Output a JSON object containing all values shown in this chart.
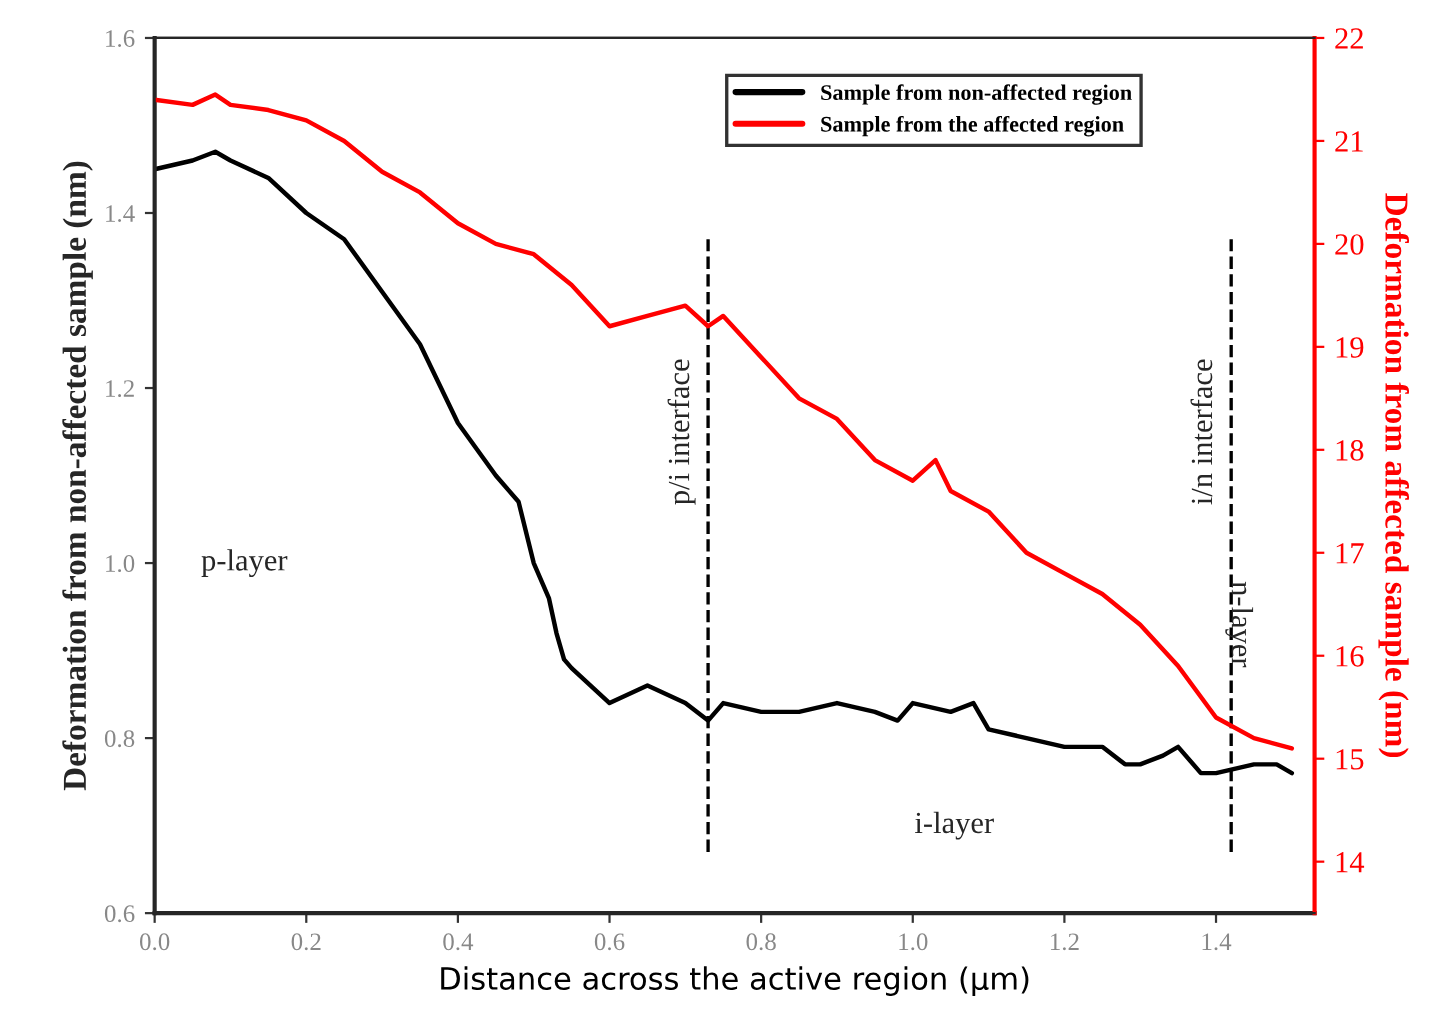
{
  "chart_data": {
    "type": "line",
    "xlabel": "Distance across the active region (μm)",
    "ylabel": "Deformation from non-affected sample (nm)",
    "y2label": "Deformation from affected sample (nm)",
    "xlim": [
      0,
      1.53
    ],
    "xticks": [
      {
        "value": 0,
        "label": "0.0"
      },
      0.2,
      0.4,
      0.6,
      0.8,
      {
        "value": 1,
        "label": "1.0"
      },
      1.2,
      1.4
    ],
    "ylim": [
      0.6,
      1.6
    ],
    "yticks": [
      0.6,
      0.8,
      {
        "value": 1,
        "label": "1.0"
      },
      1.2,
      1.4,
      1.6
    ],
    "y2lim": [
      13.5,
      22
    ],
    "y2ticks": [
      14,
      15,
      16,
      17,
      18,
      19,
      20,
      21,
      22
    ],
    "legend": "top right",
    "grid": false,
    "marker": "none",
    "line_style": "solid",
    "series": [
      {
        "name": "Sample from non-affected region",
        "color": "#000000",
        "x": [
          0,
          0.05,
          0.08,
          0.1,
          0.15,
          0.2,
          0.25,
          0.3,
          0.35,
          0.4,
          0.45,
          0.48,
          0.5,
          0.52,
          0.53,
          0.54,
          0.55,
          0.6,
          0.65,
          0.7,
          0.73,
          0.75,
          0.8,
          0.85,
          0.9,
          0.95,
          0.98,
          1.0,
          1.05,
          1.08,
          1.1,
          1.15,
          1.2,
          1.25,
          1.28,
          1.3,
          1.33,
          1.35,
          1.38,
          1.4,
          1.45,
          1.48,
          1.5
        ],
        "values": [
          1.45,
          1.46,
          1.47,
          1.46,
          1.44,
          1.4,
          1.37,
          1.31,
          1.25,
          1.16,
          1.1,
          1.07,
          1.0,
          0.96,
          0.92,
          0.89,
          0.88,
          0.84,
          0.86,
          0.84,
          0.82,
          0.84,
          0.83,
          0.83,
          0.84,
          0.83,
          0.82,
          0.84,
          0.83,
          0.84,
          0.81,
          0.8,
          0.79,
          0.79,
          0.77,
          0.77,
          0.78,
          0.79,
          0.76,
          0.76,
          0.77,
          0.77,
          0.76
        ]
      },
      {
        "name": "Sample from the affected region",
        "color": "#ff0000",
        "axis": "y2",
        "x": [
          0,
          0.05,
          0.08,
          0.1,
          0.15,
          0.2,
          0.25,
          0.3,
          0.35,
          0.4,
          0.45,
          0.5,
          0.55,
          0.6,
          0.65,
          0.7,
          0.73,
          0.75,
          0.8,
          0.85,
          0.9,
          0.95,
          1.0,
          1.03,
          1.05,
          1.1,
          1.15,
          1.2,
          1.25,
          1.3,
          1.35,
          1.4,
          1.45,
          1.5
        ],
        "values": [
          21.4,
          21.35,
          21.45,
          21.35,
          21.3,
          21.2,
          21.0,
          20.7,
          20.5,
          20.2,
          20.0,
          19.9,
          19.6,
          19.2,
          19.3,
          19.4,
          19.2,
          19.3,
          18.9,
          18.5,
          18.3,
          17.9,
          17.7,
          17.9,
          17.6,
          17.4,
          17.0,
          16.8,
          16.6,
          16.3,
          15.9,
          15.4,
          15.2,
          15.1
        ]
      }
    ],
    "ref_lines": [
      {
        "axis": "x",
        "value": 0.73,
        "label": "p/i interface",
        "color": "#000000",
        "line_style": "dashed"
      },
      {
        "axis": "x",
        "value": 1.42,
        "label": "i/n interface",
        "color": "#000000",
        "line_style": "dashed"
      }
    ],
    "annotations": [
      "p-layer",
      "i-layer",
      "n-layer"
    ]
  }
}
